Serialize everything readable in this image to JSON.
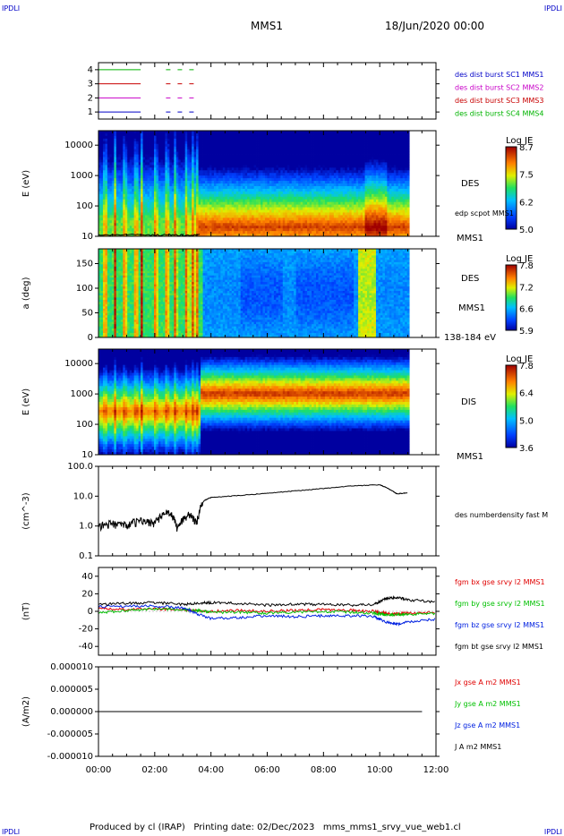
{
  "header": {
    "corner_tl": "IPDLI",
    "corner_tr": "IPDLI",
    "corner_bl": "IPDLI",
    "corner_br": "IPDLI",
    "spacecraft": "MMS1",
    "date": "18/Jun/2020 00:00"
  },
  "footer": {
    "producer": "Produced by cl (IRAP)",
    "printed": "Printing date: 02/Dec/2023",
    "filename": "mms_mms1_srvy_vue_web1.cl"
  },
  "colors": {
    "mms1": "#0000c8",
    "mms2": "#c800c8",
    "mms3": "#c80000",
    "mms4": "#00b400",
    "bx": "#e00000",
    "by": "#00c000",
    "bz": "#0020e0",
    "bt": "#000000"
  },
  "chart_data": [
    {
      "id": "burst",
      "type": "line",
      "yticks": [
        "1",
        "2",
        "3",
        "4"
      ],
      "legend": [
        "des dist burst SC1 MMS1",
        "des dist burst SC2 MMS2",
        "des dist burst SC3 MMS3",
        "des dist burst SC4 MMS4"
      ],
      "series": [
        {
          "name": "des dist burst SC1 MMS1",
          "level": 1,
          "intervals": [
            [
              0.0,
              1.5
            ],
            [
              2.4,
              3.6
            ]
          ]
        },
        {
          "name": "des dist burst SC2 MMS2",
          "level": 2,
          "intervals": [
            [
              0.0,
              1.5
            ],
            [
              2.4,
              3.6
            ]
          ]
        },
        {
          "name": "des dist burst SC3 MMS3",
          "level": 3,
          "intervals": [
            [
              0.0,
              1.5
            ],
            [
              2.4,
              3.6
            ]
          ]
        },
        {
          "name": "des dist burst SC4 MMS4",
          "level": 4,
          "intervals": [
            [
              0.0,
              1.5
            ],
            [
              2.4,
              3.6
            ]
          ]
        }
      ]
    },
    {
      "id": "des_energy",
      "type": "heatmap",
      "ylabel": "E (eV)",
      "yscale": "log",
      "ylim": [
        10,
        30000
      ],
      "yticks": [
        "10",
        "100",
        "1000",
        "10000"
      ],
      "label": "DES",
      "sublabel": "MMS1",
      "overlay_label": "edp scpot MMS1",
      "overlay_value_eV": 11,
      "colorbar": {
        "title": "Log JE",
        "ticks": [
          "8.7",
          "7.5",
          "6.2",
          "5.0"
        ],
        "range": [
          5.0,
          8.7
        ]
      },
      "peak_energy_eV": {
        "before_0330": 30,
        "after_0330": 30
      },
      "data_end_hour": 11.05
    },
    {
      "id": "des_pitch",
      "type": "heatmap",
      "ylabel": "a (deg)",
      "ylim": [
        0,
        180
      ],
      "yticks": [
        "0",
        "50",
        "100",
        "150"
      ],
      "label": "DES",
      "sublabel": "MMS1",
      "energy_range_label": "138-184 eV",
      "colorbar": {
        "title": "Log JE",
        "ticks": [
          "7.8",
          "7.2",
          "6.6",
          "5.9"
        ],
        "range": [
          5.9,
          7.8
        ]
      },
      "data_end_hour": 11.05
    },
    {
      "id": "dis_energy",
      "type": "heatmap",
      "ylabel": "E (eV)",
      "yscale": "log",
      "ylim": [
        10,
        30000
      ],
      "yticks": [
        "10",
        "100",
        "1000",
        "10000"
      ],
      "label": "DIS",
      "sublabel": "MMS1",
      "colorbar": {
        "title": "Log JE",
        "ticks": [
          "7.8",
          "6.4",
          "5.0",
          "3.6"
        ],
        "range": [
          3.6,
          7.8
        ]
      },
      "peak_energy_eV": {
        "before_0330": 200,
        "after_0330": 600
      },
      "data_end_hour": 11.05
    },
    {
      "id": "density",
      "type": "line",
      "ylabel": "(cm^-3)",
      "yscale": "log",
      "ylim": [
        0.1,
        100
      ],
      "yticks": [
        "0.1",
        "1.0",
        "10.0",
        "100.0"
      ],
      "legend": [
        "des numberdensity fast M"
      ],
      "series": [
        {
          "name": "des numberdensity fast M",
          "x": [
            0.0,
            0.5,
            1.0,
            1.5,
            2.0,
            2.5,
            2.8,
            3.2,
            3.5,
            3.75,
            4.0,
            5.0,
            6.0,
            7.0,
            8.0,
            9.0,
            10.0,
            10.3,
            10.6,
            11.0
          ],
          "y": [
            1.0,
            1.2,
            1.1,
            1.5,
            1.3,
            3.0,
            0.8,
            2.5,
            1.2,
            7.0,
            9.0,
            10.5,
            12.5,
            15.0,
            18.0,
            22.0,
            24.0,
            18.0,
            12.0,
            13.0
          ]
        }
      ]
    },
    {
      "id": "fgm",
      "type": "line",
      "ylabel": "(nT)",
      "ylim": [
        -50,
        50
      ],
      "yticks": [
        "-40",
        "-20",
        "0",
        "20",
        "40"
      ],
      "legend": [
        "fgm bx gse srvy l2 MMS1",
        "fgm by gse srvy l2 MMS1",
        "fgm bz gse srvy l2 MMS1",
        "fgm bt gse srvy l2 MMS1"
      ],
      "series": [
        {
          "name": "fgm bx gse srvy l2 MMS1",
          "x": [
            0,
            1,
            2,
            3,
            3.5,
            4,
            5,
            6,
            7,
            8,
            9,
            9.8,
            10.2,
            10.6,
            11,
            12
          ],
          "y": [
            3,
            2,
            3,
            2,
            1,
            0,
            1,
            0,
            1,
            2,
            1,
            0,
            -2,
            -3,
            -2,
            -1
          ]
        },
        {
          "name": "fgm by gse srvy l2 MMS1",
          "x": [
            0,
            1,
            2,
            3,
            3.5,
            4,
            5,
            6,
            7,
            8,
            9,
            9.8,
            10.2,
            10.6,
            11,
            12
          ],
          "y": [
            -2,
            1,
            3,
            2,
            1,
            -1,
            -1,
            -2,
            -1,
            0,
            -1,
            -2,
            -4,
            -4,
            -3,
            -3
          ]
        },
        {
          "name": "fgm bz gse srvy l2 MMS1",
          "x": [
            0,
            1,
            2,
            3,
            3.5,
            4,
            5,
            6,
            7,
            8,
            9,
            9.8,
            10.2,
            10.6,
            11,
            12
          ],
          "y": [
            5,
            6,
            6,
            4,
            -3,
            -8,
            -7,
            -5,
            -6,
            -5,
            -5,
            -6,
            -12,
            -15,
            -12,
            -9
          ]
        },
        {
          "name": "fgm bt gse srvy l2 MMS1",
          "x": [
            0,
            1,
            2,
            3,
            3.5,
            4,
            5,
            6,
            7,
            8,
            9,
            9.8,
            10.2,
            10.6,
            11,
            12
          ],
          "y": [
            8,
            9,
            10,
            8,
            9,
            10,
            9,
            7,
            8,
            8,
            7,
            8,
            14,
            16,
            13,
            11
          ]
        }
      ]
    },
    {
      "id": "current",
      "type": "line",
      "ylabel": "(A/m2)",
      "ylim": [
        -1e-05,
        1e-05
      ],
      "yticks": [
        "-0.000010",
        "-0.000005",
        "0.000000",
        "0.000005",
        "0.000010"
      ],
      "legend": [
        "Jx gse A m2 MMS1",
        "Jy gse A m2 MMS1",
        "Jz gse A m2 MMS1",
        "J A m2 MMS1"
      ],
      "series": [
        {
          "name": "Jx gse A m2 MMS1",
          "x": [
            0,
            12
          ],
          "y": [
            0,
            0
          ]
        },
        {
          "name": "Jy gse A m2 MMS1",
          "x": [
            0,
            12
          ],
          "y": [
            0,
            0
          ]
        },
        {
          "name": "Jz gse A m2 MMS1",
          "x": [
            0,
            12
          ],
          "y": [
            0,
            0
          ]
        },
        {
          "name": "J A m2 MMS1",
          "x": [
            0,
            12
          ],
          "y": [
            0,
            0
          ]
        }
      ]
    }
  ],
  "xaxis": {
    "ticks": [
      "00:00",
      "02:00",
      "04:00",
      "06:00",
      "08:00",
      "10:00",
      "12:00"
    ],
    "range_hours": [
      0,
      12
    ]
  }
}
